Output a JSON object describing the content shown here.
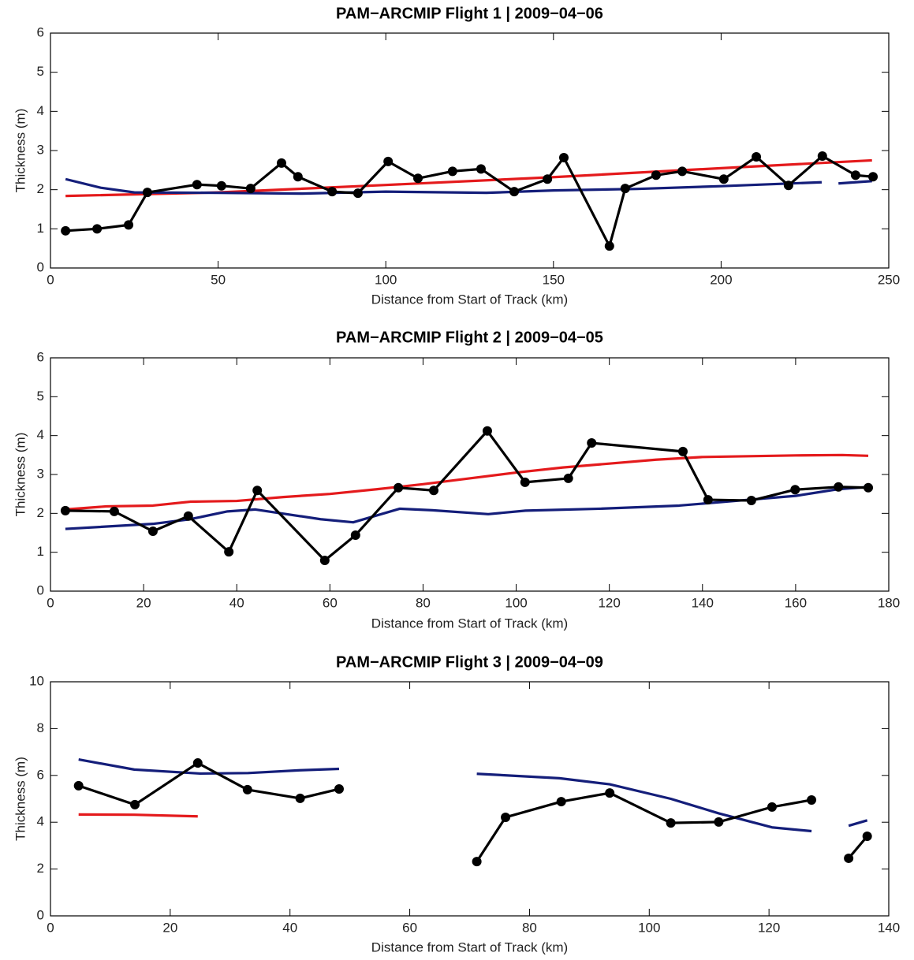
{
  "chart_data": [
    {
      "type": "line",
      "title": "PAM−ARCMIP Flight 1  |  2009−04−06",
      "xlabel": "Distance from Start of Track (km)",
      "ylabel": "Thickness (m)",
      "xlim": [
        0,
        250
      ],
      "ylim": [
        0,
        6
      ],
      "xticks": [
        0,
        50,
        100,
        150,
        200,
        250
      ],
      "yticks": [
        0,
        1,
        2,
        3,
        4,
        5,
        6
      ],
      "series": [
        {
          "color": "#e41a1c",
          "markers": false,
          "x": [
            4.5,
            50,
            100,
            150,
            200,
            245
          ],
          "values": [
            1.84,
            1.93,
            2.12,
            2.32,
            2.55,
            2.75
          ]
        },
        {
          "color": "#141e7a",
          "markers": false,
          "x": [
            4.5,
            15,
            25,
            50,
            75,
            100,
            130,
            150,
            175,
            200,
            230,
            232,
            235,
            245
          ],
          "values": [
            2.27,
            2.05,
            1.93,
            1.92,
            1.9,
            1.95,
            1.92,
            1.98,
            2.02,
            2.09,
            2.19,
            null,
            2.16,
            2.22
          ]
        },
        {
          "color": "#000000",
          "markers": true,
          "x": [
            4.5,
            13.9,
            23.3,
            28.9,
            43.7,
            51.0,
            59.7,
            68.9,
            73.8,
            84.0,
            91.7,
            100.7,
            109.6,
            119.9,
            128.4,
            138.3,
            148.2,
            153.1,
            166.7,
            171.4,
            180.6,
            188.4,
            200.8,
            210.5,
            220.1,
            230.2,
            240.1,
            245.3
          ],
          "values": [
            0.95,
            1.0,
            1.1,
            1.93,
            2.13,
            2.1,
            2.03,
            2.68,
            2.33,
            1.95,
            1.91,
            2.72,
            2.29,
            2.47,
            2.53,
            1.95,
            2.27,
            2.82,
            0.56,
            2.03,
            2.37,
            2.47,
            2.27,
            2.84,
            2.11,
            2.86,
            2.37,
            2.33
          ]
        }
      ]
    },
    {
      "type": "line",
      "title": "PAM−ARCMIP Flight 2  |  2009−04−05",
      "xlabel": "Distance from Start of Track (km)",
      "ylabel": "Thickness (m)",
      "xlim": [
        0,
        180
      ],
      "ylim": [
        0,
        6
      ],
      "xticks": [
        0,
        20,
        40,
        60,
        80,
        100,
        120,
        140,
        160,
        180
      ],
      "yticks": [
        0,
        1,
        2,
        3,
        4,
        5,
        6
      ],
      "series": [
        {
          "color": "#e41a1c",
          "markers": false,
          "x": [
            3.2,
            12,
            22,
            30,
            40,
            50,
            60,
            70,
            80,
            90,
            100,
            110,
            120,
            130,
            140,
            160,
            170,
            175.6
          ],
          "values": [
            2.1,
            2.18,
            2.2,
            2.3,
            2.32,
            2.42,
            2.5,
            2.62,
            2.75,
            2.9,
            3.05,
            3.18,
            3.28,
            3.38,
            3.45,
            3.49,
            3.5,
            3.48
          ]
        },
        {
          "color": "#141e7a",
          "markers": false,
          "x": [
            3.2,
            22,
            30,
            38,
            44,
            58,
            65,
            75,
            82,
            94,
            102,
            118,
            135,
            150,
            160,
            169,
            175.6
          ],
          "values": [
            1.6,
            1.73,
            1.85,
            2.05,
            2.1,
            1.85,
            1.77,
            2.12,
            2.08,
            1.98,
            2.07,
            2.12,
            2.2,
            2.35,
            2.45,
            2.62,
            2.68
          ]
        },
        {
          "color": "#000000",
          "markers": true,
          "x": [
            3.2,
            13.7,
            22.0,
            29.6,
            38.3,
            44.4,
            58.9,
            65.5,
            74.7,
            82.3,
            93.8,
            101.9,
            111.2,
            116.2,
            135.8,
            141.2,
            150.5,
            159.9,
            169.2,
            175.6
          ],
          "values": [
            2.07,
            2.05,
            1.54,
            1.93,
            1.01,
            2.59,
            0.79,
            1.44,
            2.66,
            2.59,
            4.12,
            2.8,
            2.9,
            3.81,
            3.59,
            2.35,
            2.33,
            2.61,
            2.68,
            2.66
          ]
        }
      ]
    },
    {
      "type": "line",
      "title": "PAM−ARCMIP Flight 3  |  2009−04−09",
      "xlabel": "Distance from Start of Track (km)",
      "ylabel": "Thickness (m)",
      "xlim": [
        0,
        140
      ],
      "ylim": [
        0,
        10
      ],
      "xticks": [
        0,
        20,
        40,
        60,
        80,
        100,
        120,
        140
      ],
      "yticks": [
        0,
        2,
        4,
        6,
        8,
        10
      ],
      "series": [
        {
          "color": "#e41a1c",
          "markers": false,
          "x": [
            4.7,
            14,
            24.6
          ],
          "values": [
            4.33,
            4.32,
            4.25
          ]
        },
        {
          "color": "#141e7a",
          "markers": false,
          "x": [
            4.7,
            14,
            25,
            33,
            41.7,
            48.2,
            60,
            71.2,
            85,
            93.4,
            103.6,
            111.6,
            120.5,
            127.1,
            130,
            133.3,
            136.4
          ],
          "values": [
            6.68,
            6.25,
            6.08,
            6.1,
            6.22,
            6.28,
            null,
            6.07,
            5.88,
            5.62,
            5.0,
            4.38,
            3.78,
            3.62,
            null,
            3.85,
            4.08
          ]
        },
        {
          "color": "#000000",
          "markers": true,
          "x": [
            4.7,
            14.1,
            24.6,
            32.9,
            41.7,
            48.2,
            60,
            71.2,
            76.0,
            85.3,
            93.4,
            103.6,
            111.6,
            120.5,
            127.1,
            130,
            133.3,
            136.4
          ],
          "values": [
            5.56,
            4.75,
            6.53,
            5.39,
            5.02,
            5.42,
            null,
            2.32,
            4.21,
            4.88,
            5.25,
            3.97,
            4.01,
            4.65,
            4.95,
            null,
            2.46,
            3.4
          ]
        }
      ]
    }
  ]
}
